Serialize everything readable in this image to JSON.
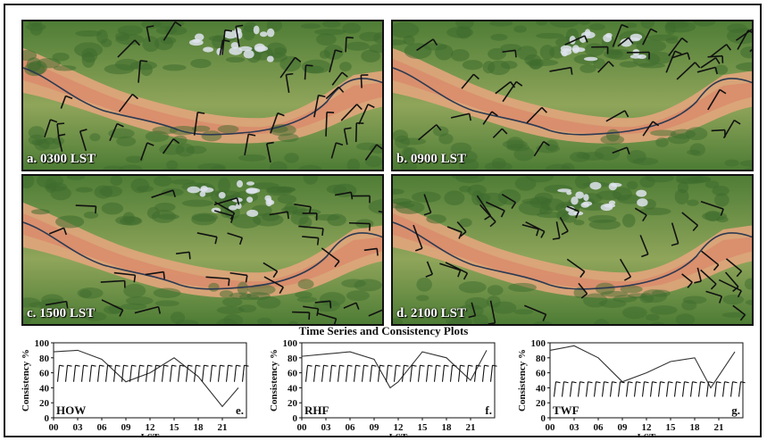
{
  "panels": [
    {
      "id": "a",
      "label": "a. 0300 LST"
    },
    {
      "id": "b",
      "label": "b. 0900 LST"
    },
    {
      "id": "c",
      "label": "c. 1500 LST"
    },
    {
      "id": "d",
      "label": "d. 2100 LST"
    }
  ],
  "timeseries_title": "Time Series and Consistency Plots",
  "chart_data": [
    {
      "type": "line",
      "site": "HOW",
      "panel_letter": "e.",
      "x": [
        0,
        3,
        6,
        9,
        12,
        15,
        18,
        21,
        23
      ],
      "y": [
        88,
        90,
        78,
        48,
        60,
        80,
        55,
        15,
        40
      ],
      "ylabel": "Consistency %",
      "xlabel": "LST",
      "xticks": [
        "00",
        "03",
        "06",
        "09",
        "12",
        "15",
        "18",
        "21"
      ],
      "yticks": [
        0,
        20,
        40,
        60,
        80,
        100
      ],
      "ylim": [
        0,
        100
      ]
    },
    {
      "type": "line",
      "site": "RHF",
      "panel_letter": "f.",
      "x": [
        0,
        3,
        6,
        9,
        11,
        12,
        15,
        18,
        21,
        23
      ],
      "y": [
        82,
        85,
        88,
        78,
        40,
        48,
        88,
        80,
        50,
        90
      ],
      "ylabel": "Consistency %",
      "xlabel": "LST",
      "xticks": [
        "00",
        "03",
        "06",
        "09",
        "12",
        "15",
        "18",
        "21"
      ],
      "yticks": [
        0,
        20,
        40,
        60,
        80,
        100
      ],
      "ylim": [
        0,
        100
      ]
    },
    {
      "type": "line",
      "site": "TWF",
      "panel_letter": "g.",
      "x": [
        0,
        3,
        6,
        9,
        12,
        15,
        18,
        20,
        23
      ],
      "y": [
        90,
        96,
        80,
        48,
        60,
        75,
        80,
        40,
        88
      ],
      "ylabel": "Consistency %",
      "xlabel": "LST",
      "xticks": [
        "00",
        "03",
        "06",
        "09",
        "12",
        "15",
        "18",
        "21"
      ],
      "yticks": [
        0,
        20,
        40,
        60,
        80,
        100
      ],
      "ylim": [
        0,
        100
      ]
    }
  ],
  "colors": {
    "plain": "#d98a6a",
    "mountain": "#3e6b2e",
    "snow": "#dfe4ef",
    "river": "#2c3a52",
    "wind": "#111111"
  }
}
